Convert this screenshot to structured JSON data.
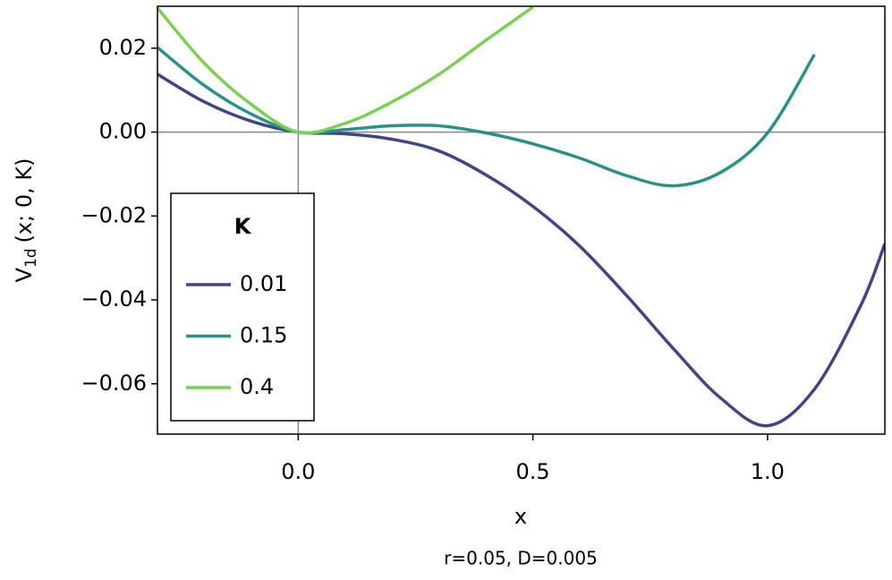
{
  "chart_data": {
    "type": "line",
    "ylabel": [
      "V",
      "1d",
      "(x; 0, K)"
    ],
    "xlabel": "x",
    "caption": "r=0.05, D=0.005",
    "legend_title": "K",
    "legend_position": "lower left",
    "zero_lines": true,
    "x": [
      -0.3,
      -0.2,
      -0.1,
      0,
      0.1,
      0.2,
      0.3,
      0.4,
      0.5,
      0.6,
      0.7,
      0.8,
      0.9,
      1.0,
      1.1,
      1.2,
      1.25
    ],
    "series": [
      {
        "name": "0.01",
        "color": "#414487",
        "values": [
          0.0138,
          0.0072,
          0.0026,
          0,
          -0.0004,
          -0.0017,
          -0.0045,
          -0.0102,
          -0.0177,
          -0.0272,
          -0.039,
          -0.0517,
          -0.0634,
          -0.07,
          -0.0613,
          -0.041,
          -0.0266
        ]
      },
      {
        "name": "0.15",
        "color": "#2a9189",
        "values": [
          0.0202,
          0.0111,
          0.0043,
          0,
          0.0006,
          0.0015,
          0.0015,
          -0.0002,
          -0.0028,
          -0.0062,
          -0.0104,
          -0.0128,
          -0.0096,
          -0.0002,
          0.0185,
          null,
          null
        ]
      },
      {
        "name": "0.4",
        "color": "#7ad151",
        "values": [
          0.0296,
          0.0164,
          0.0066,
          0,
          0.0021,
          0.0072,
          0.0138,
          0.0219,
          0.0298,
          null,
          null,
          null,
          null,
          null,
          null,
          null,
          null
        ]
      }
    ],
    "xlim": [
      -0.3,
      1.25
    ],
    "ylim": [
      -0.072,
      0.03
    ],
    "xticks": [
      {
        "value": 0,
        "label": "0.0"
      },
      0.5,
      {
        "value": 1,
        "label": "1.0"
      }
    ],
    "yticks": [
      0.02,
      {
        "value": 0,
        "label": "0.00"
      },
      {
        "value": -0.02,
        "label": "−0.02"
      },
      {
        "value": -0.04,
        "label": "−0.04"
      },
      {
        "value": -0.06,
        "label": "−0.06"
      }
    ]
  }
}
